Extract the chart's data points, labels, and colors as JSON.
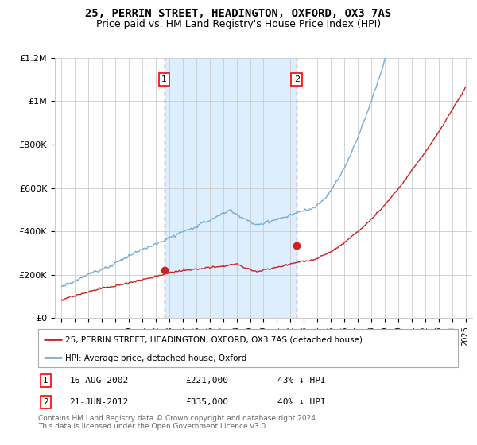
{
  "title": "25, PERRIN STREET, HEADINGTON, OXFORD, OX3 7AS",
  "subtitle": "Price paid vs. HM Land Registry's House Price Index (HPI)",
  "title_fontsize": 10,
  "subtitle_fontsize": 9,
  "background_color": "#ffffff",
  "plot_bg_color": "#ffffff",
  "grid_color": "#cccccc",
  "hpi_color": "#7aadd4",
  "price_color": "#cc2222",
  "shading_color": "#ddeeff",
  "transaction1_x": 2002.62,
  "transaction1_y": 221000,
  "transaction2_x": 2012.47,
  "transaction2_y": 335000,
  "legend_label1": "25, PERRIN STREET, HEADINGTON, OXFORD, OX3 7AS (detached house)",
  "legend_label2": "HPI: Average price, detached house, Oxford",
  "footer": "Contains HM Land Registry data © Crown copyright and database right 2024.\nThis data is licensed under the Open Government Licence v3.0.",
  "ylim": [
    0,
    1200000
  ],
  "xlim_start": 1994.5,
  "xlim_end": 2025.5,
  "yticks": [
    0,
    200000,
    400000,
    600000,
    800000,
    1000000,
    1200000
  ],
  "ytick_labels": [
    "£0",
    "£200K",
    "£400K",
    "£600K",
    "£800K",
    "£1M",
    "£1.2M"
  ],
  "xticks": [
    1995,
    1996,
    1997,
    1998,
    1999,
    2000,
    2001,
    2002,
    2003,
    2004,
    2005,
    2006,
    2007,
    2008,
    2009,
    2010,
    2011,
    2012,
    2013,
    2014,
    2015,
    2016,
    2017,
    2018,
    2019,
    2020,
    2021,
    2022,
    2023,
    2024,
    2025
  ]
}
